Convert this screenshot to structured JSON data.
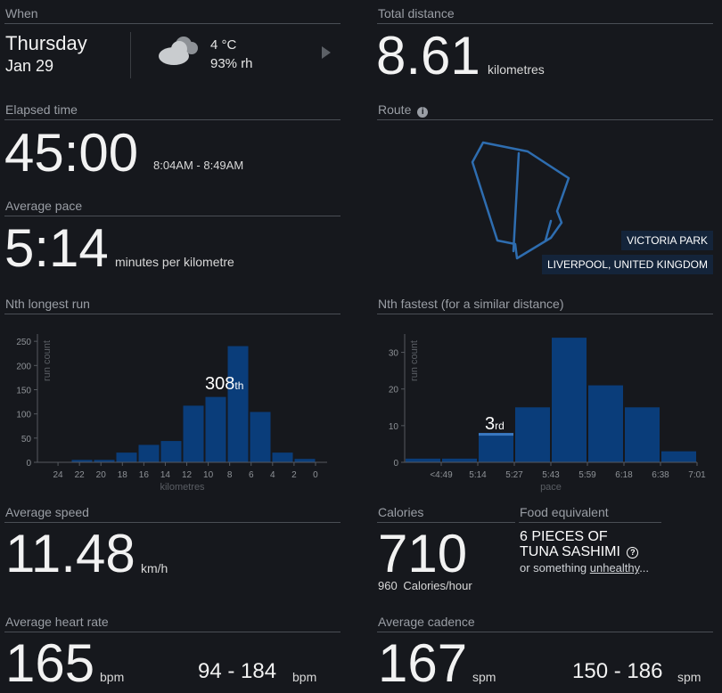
{
  "when": {
    "header": "When",
    "day": "Thursday",
    "date": "Jan 29",
    "temperature": "4 °C",
    "humidity": "93% rh",
    "icon": "cloud-icon"
  },
  "total_distance": {
    "header": "Total distance",
    "value": "8.61",
    "unit": "kilometres"
  },
  "elapsed_time": {
    "header": "Elapsed time",
    "value": "45:00",
    "range": "8:04AM - 8:49AM"
  },
  "route": {
    "header": "Route",
    "info_icon": "info-icon",
    "place": "VICTORIA PARK",
    "city": "LIVERPOOL, UNITED KINGDOM",
    "route_color": "#2e6db0"
  },
  "average_pace": {
    "header": "Average pace",
    "value": "5:14",
    "unit": "minutes per kilometre"
  },
  "nth_longest": {
    "header": "Nth longest run",
    "rank_number": "308",
    "rank_suffix": "th"
  },
  "nth_fastest": {
    "header": "Nth fastest (for a similar distance)",
    "rank_number": "3",
    "rank_suffix": "rd"
  },
  "average_speed": {
    "header": "Average speed",
    "value": "11.48",
    "unit": "km/h"
  },
  "calories": {
    "header": "Calories",
    "value": "710",
    "per_hour_value": "960",
    "per_hour_label": "Calories/hour"
  },
  "food_equivalent": {
    "header": "Food equivalent",
    "line1": "6 PIECES OF",
    "line2": "TUNA SASHIMI",
    "help_icon": "question-icon",
    "note_prefix": "or something ",
    "note_link": "unhealthy",
    "note_suffix": "..."
  },
  "average_heart_rate": {
    "header": "Average heart rate",
    "value": "165",
    "unit": "bpm",
    "range": "94 - 184",
    "range_unit": "bpm"
  },
  "average_cadence": {
    "header": "Average cadence",
    "value": "167",
    "unit": "spm",
    "range": "150 - 186",
    "range_unit": "spm"
  },
  "chart_data": [
    {
      "type": "bar",
      "title": "Nth longest run",
      "xlabel": "kilometres",
      "ylabel": "run count",
      "x_tick_labels": [
        "24",
        "22",
        "20",
        "18",
        "16",
        "14",
        "12",
        "10",
        "8",
        "6",
        "4",
        "2",
        "0"
      ],
      "y_ticks": [
        0,
        50,
        100,
        150,
        200,
        250
      ],
      "ylim": [
        0,
        265
      ],
      "bins_from_km": [
        25,
        24,
        23,
        22,
        21,
        20,
        19,
        18,
        17,
        16,
        15,
        14,
        13,
        12,
        11,
        10,
        9,
        8,
        7,
        6,
        5,
        4,
        3,
        2,
        1
      ],
      "values": [
        0,
        0,
        0,
        0,
        2,
        5,
        5,
        3,
        20,
        2,
        36,
        2,
        44,
        2,
        117,
        2,
        135,
        2,
        240,
        2,
        104,
        2,
        20,
        2,
        7
      ],
      "bars": [
        {
          "label": "22-20",
          "value": 5
        },
        {
          "label": "20-18",
          "value": 5
        },
        {
          "label": "18-16",
          "value": 20
        },
        {
          "label": "16-14",
          "value": 36
        },
        {
          "label": "14-12",
          "value": 44
        },
        {
          "label": "12-10",
          "value": 117
        },
        {
          "label": "10-8",
          "value": 135,
          "highlight": true
        },
        {
          "label": "8-6",
          "value": 240
        },
        {
          "label": "6-4",
          "value": 104
        },
        {
          "label": "4-2",
          "value": 20
        },
        {
          "label": "2-0",
          "value": 7
        }
      ],
      "bar_color": "#0a3d7a",
      "annotation": "308th"
    },
    {
      "type": "bar",
      "title": "Nth fastest (for a similar distance)",
      "xlabel": "pace",
      "ylabel": "run count",
      "x_tick_labels": [
        "<4:49",
        "5:14",
        "5:27",
        "5:43",
        "5:59",
        "6:18",
        "6:38",
        "7:01"
      ],
      "y_ticks": [
        0,
        10,
        20,
        30
      ],
      "ylim": [
        0,
        35
      ],
      "bars": [
        {
          "label": "<4:49",
          "value": 1
        },
        {
          "label": "4:49-5:14",
          "value": 1
        },
        {
          "label": "5:14-5:27",
          "value": 8,
          "highlight": true
        },
        {
          "label": "5:27-5:43",
          "value": 15
        },
        {
          "label": "5:43-5:59",
          "value": 34
        },
        {
          "label": "5:59-6:18",
          "value": 21
        },
        {
          "label": "6:18-6:38",
          "value": 15
        },
        {
          "label": "6:38-7:01",
          "value": 3
        }
      ],
      "bar_color": "#0a3d7a",
      "highlight_color": "#3a78c0",
      "annotation": "3rd"
    }
  ]
}
